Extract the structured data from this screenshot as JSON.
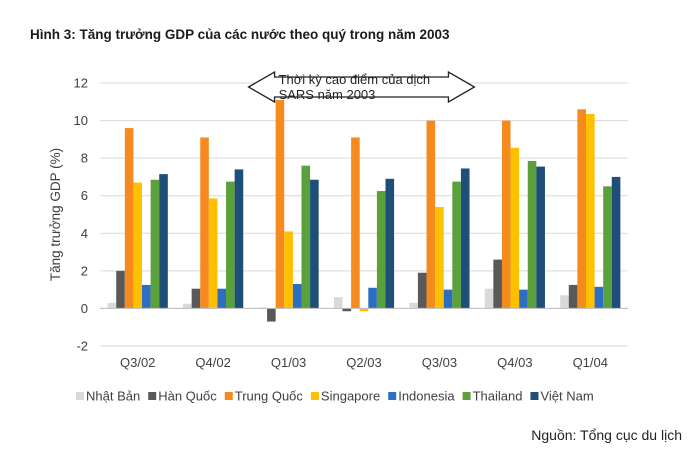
{
  "title": "Hình 3: Tăng trưởng GDP của các nước theo quý trong năm 2003",
  "source": "Nguồn: Tổng cục du lịch",
  "chart_data": {
    "type": "bar",
    "title": "Hình 3: Tăng trưởng GDP của các nước theo quý trong năm 2003",
    "xlabel": "",
    "ylabel": "Tăng trưởng GDP (%)",
    "ylim": [
      -2,
      12
    ],
    "yticks": [
      "-2",
      "0",
      "2",
      "4",
      "6",
      "8",
      "10",
      "12"
    ],
    "grid": true,
    "legend_position": "bottom",
    "categories": [
      "Q3/02",
      "Q4/02",
      "Q1/03",
      "Q2/03",
      "Q3/03",
      "Q4/03",
      "Q1/04"
    ],
    "series": [
      {
        "name": "Nhật Bản",
        "color": "#d9d9d9",
        "values": [
          0.3,
          0.25,
          0.05,
          0.6,
          0.3,
          1.05,
          0.7
        ]
      },
      {
        "name": "Hàn Quốc",
        "color": "#595959",
        "values": [
          2.0,
          1.05,
          -0.7,
          -0.15,
          1.9,
          2.6,
          1.25
        ]
      },
      {
        "name": "Trung Quốc",
        "color": "#f58a1f",
        "values": [
          9.6,
          9.1,
          11.1,
          9.1,
          10.0,
          10.0,
          10.6
        ]
      },
      {
        "name": "Singapore",
        "color": "#ffc000",
        "values": [
          6.7,
          5.85,
          4.1,
          -0.15,
          5.4,
          8.55,
          10.35
        ]
      },
      {
        "name": "Indonesia",
        "color": "#2e6ec2",
        "values": [
          1.25,
          1.05,
          1.3,
          1.1,
          1.0,
          1.0,
          1.15
        ]
      },
      {
        "name": "Thailand",
        "color": "#5aa13c",
        "values": [
          6.85,
          6.75,
          7.6,
          6.25,
          6.75,
          7.85,
          6.5
        ]
      },
      {
        "name": "Việt Nam",
        "color": "#1f4e79",
        "values": [
          7.15,
          7.4,
          6.85,
          6.9,
          7.45,
          7.55,
          7.0
        ]
      }
    ],
    "annotation": {
      "lines": [
        "Thời kỳ cao điểm của dịch",
        "SARS năm 2003"
      ],
      "from_category": "Q1/03",
      "to_category": "Q3/03"
    }
  }
}
